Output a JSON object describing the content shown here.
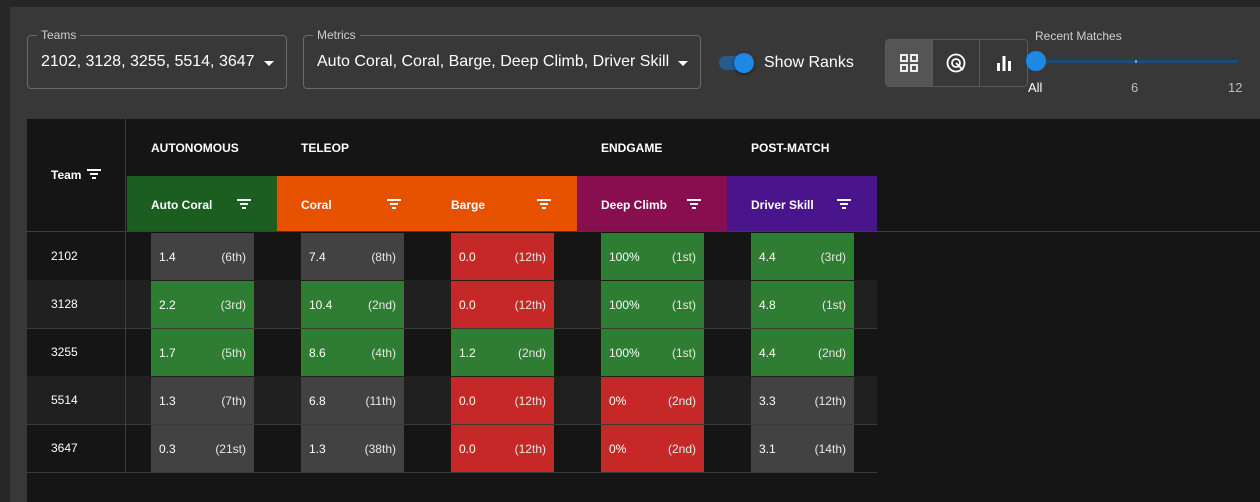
{
  "filters": {
    "teams": {
      "label": "Teams",
      "value": "2102, 3128, 3255, 5514, 3647"
    },
    "metrics": {
      "label": "Metrics",
      "value": "Auto Coral, Coral, Barge, Deep Climb, Driver Skill"
    }
  },
  "show_ranks": {
    "label": "Show Ranks",
    "on": true
  },
  "view_modes": [
    "grid-view-icon",
    "radar-view-icon",
    "bar-chart-view-icon"
  ],
  "recent_matches": {
    "label": "Recent Matches",
    "marks": [
      "All",
      "6",
      "12"
    ],
    "selected": "All"
  },
  "table": {
    "team_header": "Team",
    "groups": [
      "AUTONOMOUS",
      "TELEOP",
      "ENDGAME",
      "POST-MATCH"
    ],
    "metrics": [
      {
        "name": "Auto Coral",
        "color": "#1b5e20"
      },
      {
        "name": "Coral",
        "color": "#e65100"
      },
      {
        "name": "Barge",
        "color": "#e65100"
      },
      {
        "name": "Deep Climb",
        "color": "#880e4f"
      },
      {
        "name": "Driver Skill",
        "color": "#4a148c"
      }
    ],
    "rows": [
      {
        "team": "2102",
        "cells": [
          {
            "value": "1.4",
            "rank": "(6th)",
            "status": "gray"
          },
          {
            "value": "7.4",
            "rank": "(8th)",
            "status": "gray"
          },
          {
            "value": "0.0",
            "rank": "(12th)",
            "status": "red"
          },
          {
            "value": "100%",
            "rank": "(1st)",
            "status": "green"
          },
          {
            "value": "4.4",
            "rank": "(3rd)",
            "status": "green"
          }
        ]
      },
      {
        "team": "3128",
        "cells": [
          {
            "value": "2.2",
            "rank": "(3rd)",
            "status": "green"
          },
          {
            "value": "10.4",
            "rank": "(2nd)",
            "status": "green"
          },
          {
            "value": "0.0",
            "rank": "(12th)",
            "status": "red"
          },
          {
            "value": "100%",
            "rank": "(1st)",
            "status": "green"
          },
          {
            "value": "4.8",
            "rank": "(1st)",
            "status": "green"
          }
        ]
      },
      {
        "team": "3255",
        "cells": [
          {
            "value": "1.7",
            "rank": "(5th)",
            "status": "green"
          },
          {
            "value": "8.6",
            "rank": "(4th)",
            "status": "green"
          },
          {
            "value": "1.2",
            "rank": "(2nd)",
            "status": "green"
          },
          {
            "value": "100%",
            "rank": "(1st)",
            "status": "green"
          },
          {
            "value": "4.4",
            "rank": "(2nd)",
            "status": "green"
          }
        ]
      },
      {
        "team": "5514",
        "cells": [
          {
            "value": "1.3",
            "rank": "(7th)",
            "status": "gray"
          },
          {
            "value": "6.8",
            "rank": "(11th)",
            "status": "gray"
          },
          {
            "value": "0.0",
            "rank": "(12th)",
            "status": "red"
          },
          {
            "value": "0%",
            "rank": "(2nd)",
            "status": "red"
          },
          {
            "value": "3.3",
            "rank": "(12th)",
            "status": "gray"
          }
        ]
      },
      {
        "team": "3647",
        "cells": [
          {
            "value": "0.3",
            "rank": "(21st)",
            "status": "gray"
          },
          {
            "value": "1.3",
            "rank": "(38th)",
            "status": "gray"
          },
          {
            "value": "0.0",
            "rank": "(12th)",
            "status": "red"
          },
          {
            "value": "0%",
            "rank": "(2nd)",
            "status": "red"
          },
          {
            "value": "3.1",
            "rank": "(14th)",
            "status": "gray"
          }
        ]
      }
    ]
  }
}
